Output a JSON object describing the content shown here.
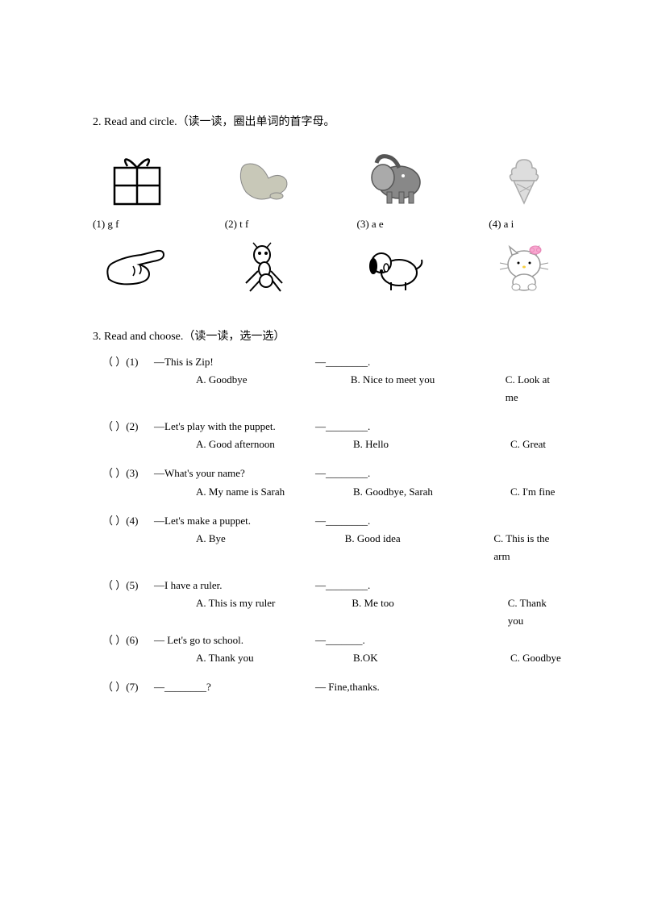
{
  "section2": {
    "title": "2. Read and circle.（读一读，圈出单词的首字母。",
    "labels": [
      "(1)   g       f",
      "(2)   t       f",
      "(3)   a       e",
      "(4)   a       i"
    ]
  },
  "section3": {
    "title": "3. Read and choose.（读一读，选一选）",
    "questions": [
      {
        "num": "(1)",
        "prompt": "—This is Zip!",
        "response": "—________.",
        "a": "A. Goodbye",
        "b": "B. Nice to meet you",
        "c": "C. Look at me",
        "tight": false
      },
      {
        "num": "(2)",
        "prompt": "—Let's play with the puppet.",
        "response": "—________.",
        "a": "A. Good afternoon",
        "b": "B. Hello",
        "c": "C. Great",
        "tight": false
      },
      {
        "num": "(3)",
        "prompt": "—What's your name?",
        "response": "—________.",
        "a": "A. My name is Sarah",
        "b": "B. Goodbye, Sarah",
        "c": "C. I'm fine",
        "tight": false
      },
      {
        "num": "(4)",
        "prompt": "—Let's make a puppet.",
        "response": "—________.",
        "a": "A. Bye",
        "b": "B. Good idea",
        "c": "C. This is the arm",
        "tight": false
      },
      {
        "num": "(5)",
        "prompt": "—I have a ruler.",
        "response": "—________.",
        "a": "A. This is my ruler",
        "b": "B. Me too",
        "c": "C. Thank you",
        "tight": true
      },
      {
        "num": "(6)",
        "prompt": "— Let's go to school.",
        "response": "—_______.",
        "a": "A. Thank you",
        "b": "B.OK",
        "c": "C. Goodbye",
        "tight": false
      },
      {
        "num": "(7)",
        "prompt": "—________?",
        "response": "— Fine,thanks.",
        "a": "",
        "b": "",
        "c": "",
        "tight": false
      }
    ]
  }
}
